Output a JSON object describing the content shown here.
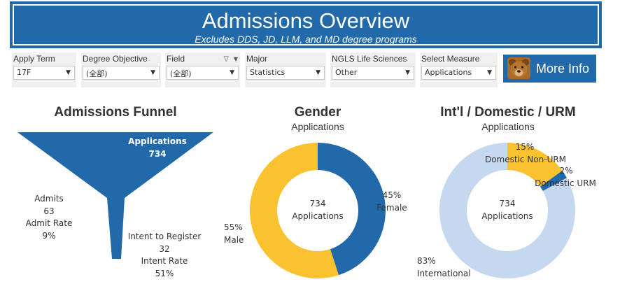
{
  "banner": {
    "title": "Admissions Overview",
    "subtitle": "Excludes DDS, JD, LLM, and MD degree programs"
  },
  "filters": [
    {
      "label": "Apply Term",
      "value": "17F"
    },
    {
      "label": "Degree Objective",
      "value": "(全部)"
    },
    {
      "label": "Field",
      "value": "(全部)"
    },
    {
      "label": "Major",
      "value": "Statistics"
    },
    {
      "label": "NGLS Life Sciences",
      "value": "Other"
    },
    {
      "label": "Select Measure",
      "value": "Applications"
    }
  ],
  "more_info": {
    "label": "More Info"
  },
  "icons": {
    "dropdown": "▼",
    "filter": "∇",
    "label_menu": "▼"
  },
  "colors": {
    "blue": "#2269a9",
    "yellow": "#f9c22e",
    "light_blue": "#c5d8ef",
    "banner": "#2269a9"
  },
  "funnel": {
    "title": "Admissions Funnel",
    "applications_label": "Applications",
    "applications_value": "734",
    "admits_label": "Admits",
    "admits_value": "63",
    "admit_rate_label": "Admit Rate",
    "admit_rate_value": "9%",
    "intent_label": "Intent to Register",
    "intent_value": "32",
    "intent_rate_label": "Intent Rate",
    "intent_rate_value": "51%"
  },
  "gender": {
    "title": "Gender",
    "subtitle": "Applications",
    "center_value": "734",
    "center_label": "Applications",
    "female_pct": "45%",
    "female_label": "Female",
    "male_pct": "55%",
    "male_label": "Male"
  },
  "origin": {
    "title": "Int'l / Domestic / URM",
    "subtitle": "Applications",
    "center_value": "734",
    "center_label": "Applications",
    "dom_nonurm_pct": "15%",
    "dom_nonurm_label": "Domestic Non-URM",
    "dom_urm_pct": "2%",
    "dom_urm_label": "Domestic URM",
    "intl_pct": "83%",
    "intl_label": "International"
  },
  "chart_data": [
    {
      "type": "pie",
      "title": "Gender",
      "subtitle": "Applications",
      "total": 734,
      "slices": [
        {
          "label": "Female",
          "value": 45,
          "color": "#2269a9"
        },
        {
          "label": "Male",
          "value": 55,
          "color": "#f9c22e"
        }
      ]
    },
    {
      "type": "pie",
      "title": "Int'l / Domestic / URM",
      "subtitle": "Applications",
      "total": 734,
      "slices": [
        {
          "label": "Domestic Non-URM",
          "value": 15,
          "color": "#f9c22e"
        },
        {
          "label": "Domestic URM",
          "value": 2,
          "color": "#2269a9"
        },
        {
          "label": "International",
          "value": 83,
          "color": "#c5d8ef"
        }
      ]
    }
  ]
}
